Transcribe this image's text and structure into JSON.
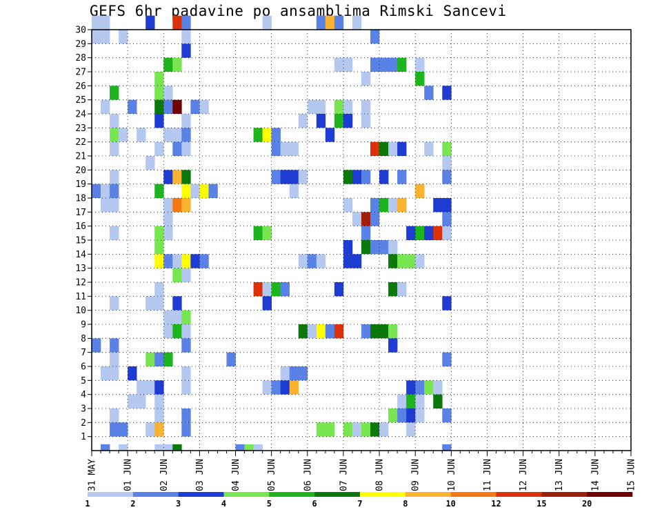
{
  "chart_data": {
    "type": "heatmap",
    "title": "GEFS 6hr padavine po ansamblima Rimski Sancevi",
    "xlabel": "",
    "ylabel": "",
    "members": 30,
    "steps_per_day": 4,
    "x_tick_labels": [
      "31 MAY",
      "01 JUN",
      "02 JUN",
      "03 JUN",
      "04 JUN",
      "05 JUN",
      "06 JUN",
      "07 JUN",
      "08 JUN",
      "09 JUN",
      "10 JUN",
      "11 JUN",
      "12 JUN",
      "13 JUN",
      "14 JUN",
      "15 JUN"
    ],
    "y_tick_labels": [
      "1",
      "2",
      "3",
      "4",
      "5",
      "6",
      "7",
      "8",
      "9",
      "10",
      "11",
      "12",
      "13",
      "14",
      "15",
      "16",
      "17",
      "18",
      "19",
      "20",
      "21",
      "22",
      "23",
      "24",
      "25",
      "26",
      "27",
      "28",
      "29",
      "30"
    ],
    "grid": true,
    "legend": {
      "placement": "bottom",
      "boundaries": [
        "1",
        "2",
        "3",
        "4",
        "5",
        "6",
        "7",
        "8",
        "10",
        "12",
        "15",
        "20"
      ],
      "colors": [
        "#b4c8f0",
        "#5a82e6",
        "#1e3cd2",
        "#78e650",
        "#1eb41e",
        "#0a780a",
        "#ffff00",
        "#fab432",
        "#f57814",
        "#dc320a",
        "#a01e0a",
        "#6e0000"
      ]
    },
    "cells": [
      [
        30,
        0,
        0
      ],
      [
        30,
        1,
        0
      ],
      [
        30,
        6,
        2
      ],
      [
        30,
        9,
        9
      ],
      [
        30,
        10,
        1
      ],
      [
        30,
        19,
        0
      ],
      [
        30,
        25,
        1
      ],
      [
        30,
        26,
        7
      ],
      [
        30,
        27,
        1
      ],
      [
        30,
        29,
        0
      ],
      [
        29,
        0,
        0
      ],
      [
        29,
        1,
        0
      ],
      [
        29,
        3,
        0
      ],
      [
        29,
        10,
        0
      ],
      [
        29,
        31,
        1
      ],
      [
        28,
        10,
        2
      ],
      [
        27,
        8,
        4
      ],
      [
        27,
        9,
        3
      ],
      [
        27,
        27,
        0
      ],
      [
        27,
        28,
        0
      ],
      [
        27,
        31,
        1
      ],
      [
        27,
        32,
        1
      ],
      [
        27,
        33,
        1
      ],
      [
        27,
        34,
        4
      ],
      [
        27,
        36,
        0
      ],
      [
        26,
        7,
        3
      ],
      [
        26,
        30,
        0
      ],
      [
        26,
        36,
        4
      ],
      [
        25,
        2,
        4
      ],
      [
        25,
        7,
        3
      ],
      [
        25,
        8,
        0
      ],
      [
        25,
        37,
        1
      ],
      [
        25,
        39,
        2
      ],
      [
        24,
        1,
        0
      ],
      [
        24,
        4,
        1
      ],
      [
        24,
        7,
        5
      ],
      [
        24,
        8,
        1
      ],
      [
        24,
        9,
        11
      ],
      [
        24,
        11,
        1
      ],
      [
        24,
        12,
        0
      ],
      [
        24,
        24,
        0
      ],
      [
        24,
        25,
        0
      ],
      [
        24,
        27,
        3
      ],
      [
        24,
        28,
        0
      ],
      [
        24,
        30,
        0
      ],
      [
        23,
        2,
        0
      ],
      [
        23,
        7,
        2
      ],
      [
        23,
        10,
        0
      ],
      [
        23,
        23,
        0
      ],
      [
        23,
        25,
        2
      ],
      [
        23,
        27,
        4
      ],
      [
        23,
        28,
        2
      ],
      [
        23,
        30,
        0
      ],
      [
        22,
        2,
        3
      ],
      [
        22,
        3,
        0
      ],
      [
        22,
        5,
        0
      ],
      [
        22,
        8,
        0
      ],
      [
        22,
        9,
        0
      ],
      [
        22,
        10,
        1
      ],
      [
        22,
        18,
        4
      ],
      [
        22,
        19,
        6
      ],
      [
        22,
        20,
        1
      ],
      [
        22,
        26,
        2
      ],
      [
        21,
        2,
        0
      ],
      [
        21,
        7,
        0
      ],
      [
        21,
        9,
        1
      ],
      [
        21,
        10,
        0
      ],
      [
        21,
        20,
        1
      ],
      [
        21,
        21,
        0
      ],
      [
        21,
        22,
        0
      ],
      [
        21,
        31,
        9
      ],
      [
        21,
        32,
        5
      ],
      [
        21,
        33,
        0
      ],
      [
        21,
        34,
        2
      ],
      [
        21,
        37,
        0
      ],
      [
        21,
        39,
        3
      ],
      [
        20,
        6,
        0
      ],
      [
        20,
        39,
        0
      ],
      [
        19,
        2,
        0
      ],
      [
        19,
        8,
        2
      ],
      [
        19,
        9,
        7
      ],
      [
        19,
        10,
        5
      ],
      [
        19,
        20,
        1
      ],
      [
        19,
        21,
        2
      ],
      [
        19,
        22,
        2
      ],
      [
        19,
        23,
        0
      ],
      [
        19,
        28,
        5
      ],
      [
        19,
        29,
        2
      ],
      [
        19,
        30,
        1
      ],
      [
        19,
        32,
        2
      ],
      [
        19,
        34,
        1
      ],
      [
        19,
        39,
        1
      ],
      [
        18,
        0,
        1
      ],
      [
        18,
        1,
        0
      ],
      [
        18,
        2,
        1
      ],
      [
        18,
        7,
        4
      ],
      [
        18,
        10,
        6
      ],
      [
        18,
        11,
        0
      ],
      [
        18,
        12,
        6
      ],
      [
        18,
        13,
        1
      ],
      [
        18,
        22,
        0
      ],
      [
        18,
        36,
        7
      ],
      [
        17,
        1,
        0
      ],
      [
        17,
        2,
        0
      ],
      [
        17,
        8,
        0
      ],
      [
        17,
        9,
        8
      ],
      [
        17,
        10,
        7
      ],
      [
        17,
        28,
        0
      ],
      [
        17,
        31,
        1
      ],
      [
        17,
        32,
        4
      ],
      [
        17,
        33,
        0
      ],
      [
        17,
        34,
        7
      ],
      [
        17,
        38,
        2
      ],
      [
        17,
        39,
        2
      ],
      [
        16,
        8,
        0
      ],
      [
        16,
        29,
        0
      ],
      [
        16,
        30,
        10
      ],
      [
        16,
        31,
        1
      ],
      [
        16,
        39,
        1
      ],
      [
        15,
        2,
        0
      ],
      [
        15,
        7,
        3
      ],
      [
        15,
        8,
        0
      ],
      [
        15,
        18,
        4
      ],
      [
        15,
        19,
        3
      ],
      [
        15,
        30,
        1
      ],
      [
        15,
        35,
        2
      ],
      [
        15,
        36,
        4
      ],
      [
        15,
        37,
        2
      ],
      [
        15,
        38,
        9
      ],
      [
        15,
        39,
        0
      ],
      [
        14,
        7,
        3
      ],
      [
        14,
        28,
        2
      ],
      [
        14,
        30,
        5
      ],
      [
        14,
        31,
        1
      ],
      [
        14,
        32,
        1
      ],
      [
        14,
        33,
        0
      ],
      [
        13,
        7,
        6
      ],
      [
        13,
        8,
        1
      ],
      [
        13,
        9,
        0
      ],
      [
        13,
        10,
        6
      ],
      [
        13,
        11,
        2
      ],
      [
        13,
        12,
        1
      ],
      [
        13,
        23,
        0
      ],
      [
        13,
        24,
        1
      ],
      [
        13,
        25,
        0
      ],
      [
        13,
        28,
        2
      ],
      [
        13,
        29,
        2
      ],
      [
        13,
        33,
        5
      ],
      [
        13,
        34,
        3
      ],
      [
        13,
        35,
        3
      ],
      [
        13,
        36,
        0
      ],
      [
        12,
        9,
        3
      ],
      [
        12,
        10,
        0
      ],
      [
        11,
        7,
        0
      ],
      [
        11,
        18,
        9
      ],
      [
        11,
        19,
        0
      ],
      [
        11,
        20,
        4
      ],
      [
        11,
        21,
        1
      ],
      [
        11,
        27,
        2
      ],
      [
        11,
        33,
        5
      ],
      [
        11,
        34,
        0
      ],
      [
        10,
        2,
        0
      ],
      [
        10,
        6,
        0
      ],
      [
        10,
        7,
        0
      ],
      [
        10,
        9,
        2
      ],
      [
        10,
        19,
        2
      ],
      [
        10,
        39,
        2
      ],
      [
        9,
        8,
        0
      ],
      [
        9,
        9,
        0
      ],
      [
        9,
        10,
        3
      ],
      [
        8,
        8,
        0
      ],
      [
        8,
        9,
        4
      ],
      [
        8,
        10,
        0
      ],
      [
        8,
        23,
        5
      ],
      [
        8,
        24,
        0
      ],
      [
        8,
        25,
        6
      ],
      [
        8,
        26,
        1
      ],
      [
        8,
        27,
        9
      ],
      [
        8,
        30,
        1
      ],
      [
        8,
        31,
        5
      ],
      [
        8,
        32,
        5
      ],
      [
        8,
        33,
        3
      ],
      [
        7,
        0,
        1
      ],
      [
        7,
        2,
        1
      ],
      [
        7,
        10,
        1
      ],
      [
        7,
        33,
        2
      ],
      [
        6,
        2,
        0
      ],
      [
        6,
        6,
        3
      ],
      [
        6,
        7,
        1
      ],
      [
        6,
        8,
        4
      ],
      [
        6,
        15,
        1
      ],
      [
        6,
        39,
        1
      ],
      [
        5,
        1,
        0
      ],
      [
        5,
        2,
        0
      ],
      [
        5,
        4,
        2
      ],
      [
        5,
        10,
        0
      ],
      [
        5,
        21,
        0
      ],
      [
        5,
        22,
        1
      ],
      [
        5,
        23,
        1
      ],
      [
        4,
        6,
        0
      ],
      [
        4,
        7,
        2
      ],
      [
        4,
        10,
        0
      ],
      [
        4,
        19,
        0
      ],
      [
        4,
        20,
        1
      ],
      [
        4,
        21,
        2
      ],
      [
        4,
        22,
        7
      ],
      [
        4,
        35,
        2
      ],
      [
        4,
        36,
        1
      ],
      [
        4,
        37,
        3
      ],
      [
        4,
        38,
        0
      ],
      [
        3,
        4,
        0
      ],
      [
        4,
        5,
        0
      ],
      [
        3,
        5,
        0
      ],
      [
        3,
        7,
        0
      ],
      [
        3,
        34,
        0
      ],
      [
        3,
        35,
        4
      ],
      [
        3,
        36,
        0
      ],
      [
        3,
        38,
        5
      ],
      [
        2,
        2,
        0
      ],
      [
        2,
        7,
        0
      ],
      [
        2,
        10,
        1
      ],
      [
        2,
        33,
        3
      ],
      [
        2,
        34,
        1
      ],
      [
        2,
        35,
        2
      ],
      [
        2,
        36,
        0
      ],
      [
        2,
        39,
        1
      ],
      [
        1,
        2,
        1
      ],
      [
        1,
        3,
        1
      ],
      [
        1,
        6,
        0
      ],
      [
        1,
        7,
        7
      ],
      [
        1,
        10,
        1
      ],
      [
        1,
        25,
        3
      ],
      [
        1,
        26,
        3
      ],
      [
        1,
        28,
        3
      ],
      [
        1,
        29,
        0
      ],
      [
        1,
        30,
        3
      ],
      [
        1,
        31,
        5
      ],
      [
        1,
        32,
        0
      ],
      [
        1,
        35,
        0
      ],
      [
        0,
        1,
        1
      ],
      [
        0,
        3,
        0
      ],
      [
        0,
        7,
        0
      ],
      [
        0,
        8,
        0
      ],
      [
        0,
        9,
        5
      ],
      [
        0,
        16,
        1
      ],
      [
        0,
        17,
        3
      ],
      [
        0,
        18,
        0
      ],
      [
        0,
        39,
        1
      ]
    ]
  }
}
